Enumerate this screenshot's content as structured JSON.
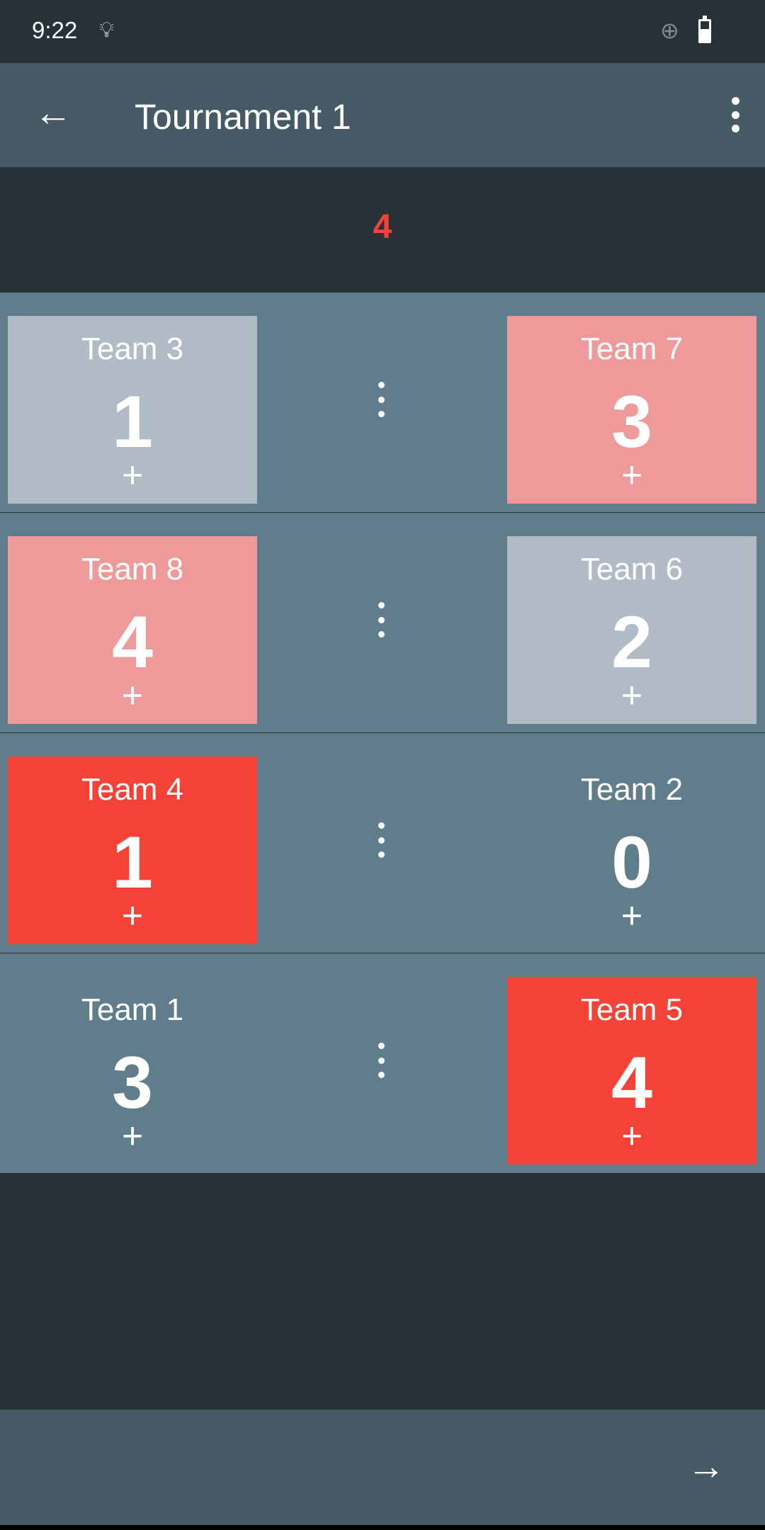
{
  "status_bar": {
    "time": "9:22",
    "icons": [
      "lightbulb-icon",
      "globe-unknown-icon",
      "battery-icon"
    ]
  },
  "app_bar": {
    "title": "Tournament 1",
    "back_icon": "arrow-left-icon",
    "menu_icon": "more-vert-icon"
  },
  "round": {
    "number": "4",
    "color": "#f44336"
  },
  "colors": {
    "gray": "#b0bbc5",
    "pink": "#ef9a9a",
    "red": "#f44336",
    "none": "transparent"
  },
  "matches": [
    {
      "home": {
        "name": "Team 3",
        "score": "1",
        "plus": "+",
        "color": "gray"
      },
      "away": {
        "name": "Team 7",
        "score": "3",
        "plus": "+",
        "color": "pink"
      }
    },
    {
      "home": {
        "name": "Team 8",
        "score": "4",
        "plus": "+",
        "color": "pink"
      },
      "away": {
        "name": "Team 6",
        "score": "2",
        "plus": "+",
        "color": "gray"
      }
    },
    {
      "home": {
        "name": "Team 4",
        "score": "1",
        "plus": "+",
        "color": "red"
      },
      "away": {
        "name": "Team 2",
        "score": "0",
        "plus": "+",
        "color": "none"
      }
    },
    {
      "home": {
        "name": "Team 1",
        "score": "3",
        "plus": "+",
        "color": "none"
      },
      "away": {
        "name": "Team 5",
        "score": "4",
        "plus": "+",
        "color": "red"
      }
    }
  ],
  "bottom_bar": {
    "next_icon": "arrow-right-icon"
  }
}
